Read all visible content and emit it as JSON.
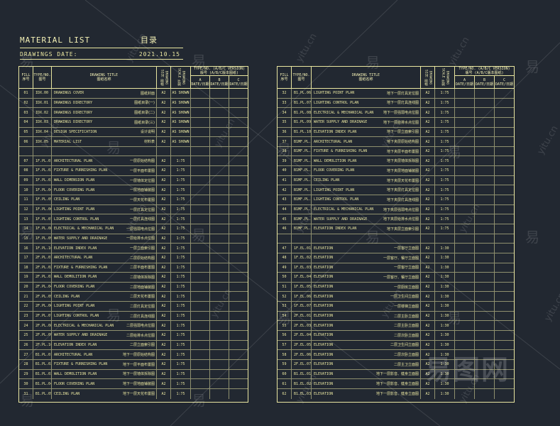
{
  "header": {
    "title": "MATERIAL  LIST",
    "title_cn": "目录",
    "date_label": "DRAWINGS  DATE:",
    "date_value": "2021.10.15"
  },
  "columns": {
    "no": "FILL",
    "no_cn": "序号",
    "code": "TYPE/NO.",
    "code_cn": "图号",
    "title": "DRAWING TITLE",
    "title_cn": "图纸名称",
    "size": "DRAWING SIZE 图幅",
    "scale": "DRAWING SCALE 比例",
    "rev_title": "TYPE/NO. (A/B/C VERSION)",
    "rev_title_cn": "版号 (A/B/C版本图纸)",
    "rev_a": "A",
    "rev_b": "B",
    "rev_c": "C",
    "rev_sub": "DATE/日期"
  },
  "left_rows": [
    {
      "no": "01",
      "code": "IDX.00",
      "title": "DRAWINGS  COVER",
      "cn": "图纸封面",
      "size": "A2",
      "scale": "AS SHOWN"
    },
    {
      "no": "02",
      "code": "IDX.01",
      "title": "DRAWINGS  DIRECTORY",
      "cn": "图纸目录(一)",
      "size": "A2",
      "scale": "AS SHOWN"
    },
    {
      "no": "03",
      "code": "IDX.02",
      "title": "DRAWINGS  DIRECTORY",
      "cn": "图纸目录(二)",
      "size": "A2",
      "scale": "AS SHOWN"
    },
    {
      "no": "04",
      "code": "IDX.03",
      "title": "DRAWINGS  DIRECTORY",
      "cn": "图纸目录(三)",
      "size": "A2",
      "scale": "AS SHOWN"
    },
    {
      "no": "05",
      "code": "IDX.04",
      "title": "DESIGN SPECIFICATION",
      "cn": "设计说明",
      "size": "A2",
      "scale": "AS SHOWN"
    },
    {
      "no": "06",
      "code": "IDX.05",
      "title": "MATERIAL LIST",
      "cn": "材料表",
      "size": "A2",
      "scale": "AS SHOWN"
    },
    {
      "blank": true
    },
    {
      "no": "07",
      "code": "1F.PL.01",
      "title": "ARCHITECTURAL PLAN",
      "cn": "一层原始结构图",
      "size": "A2",
      "scale": "1:75"
    },
    {
      "no": "08",
      "code": "1F.PL.02",
      "title": "FIXTURE & FURNISHING PLAN",
      "cn": "一层平面布置图",
      "size": "A2",
      "scale": "1:75"
    },
    {
      "no": "09",
      "code": "1F.PL.03",
      "title": "WALL DIMENSION PLAN",
      "cn": "一层墙体定位图",
      "size": "A2",
      "scale": "1:75"
    },
    {
      "no": "10",
      "code": "1F.PL.04",
      "title": "FLOOR  COVERING  PLAN",
      "cn": "一层地面铺装图",
      "size": "A2",
      "scale": "1:75"
    },
    {
      "no": "11",
      "code": "1F.PL.05",
      "title": "CEILING  PLAN",
      "cn": "一层天花布置图",
      "size": "A2",
      "scale": "1:75"
    },
    {
      "no": "12",
      "code": "1F.PL.06",
      "title": "LIGHTING  POINT  PLAN",
      "cn": "一层灯具定位图",
      "size": "A2",
      "scale": "1:75"
    },
    {
      "no": "13",
      "code": "1F.PL.07",
      "title": "LIGHTING  CONTROL  PLAN",
      "cn": "一层灯具连线图",
      "size": "A2",
      "scale": "1:75"
    },
    {
      "no": "14",
      "code": "1F.PL.08",
      "title": "ELECTRICAL & MECHANICAL PLAN",
      "cn": "一层强弱电点位图",
      "size": "A2",
      "scale": "1:75"
    },
    {
      "no": "15",
      "code": "1F.PL.09",
      "title": "WATER SUPPLY AND DRAINAGE",
      "cn": "一层给排水点位图",
      "size": "A2",
      "scale": "1:75"
    },
    {
      "no": "16",
      "code": "1F.PL.10",
      "title": "ELEVATION INDEX PLAN",
      "cn": "一层立面索引图",
      "size": "A2",
      "scale": "1:75"
    },
    {
      "no": "17",
      "code": "2F.PL.01",
      "title": "ARCHITECTURAL PLAN",
      "cn": "二层原始结构图",
      "size": "A2",
      "scale": "1:75"
    },
    {
      "no": "18",
      "code": "2F.PL.02",
      "title": "FIXTURE & FURNISHING PLAN",
      "cn": "二层平面布置图",
      "size": "A2",
      "scale": "1:75"
    },
    {
      "no": "19",
      "code": "2F.PL.03",
      "title": "WALL DEMOLITION PLAN",
      "cn": "二层墙体拆除图",
      "size": "A2",
      "scale": "1:75"
    },
    {
      "no": "20",
      "code": "2F.PL.04",
      "title": "FLOOR  COVERING  PLAN",
      "cn": "二层地面铺装图",
      "size": "A2",
      "scale": "1:75"
    },
    {
      "no": "21",
      "code": "2F.PL.05",
      "title": "CEILING  PLAN",
      "cn": "二层天花布置图",
      "size": "A2",
      "scale": "1:75"
    },
    {
      "no": "22",
      "code": "2F.PL.06",
      "title": "LIGHTING  POINT  PLAN",
      "cn": "二层灯具定位图",
      "size": "A2",
      "scale": "1:75"
    },
    {
      "no": "23",
      "code": "2F.PL.07",
      "title": "LIGHTING  CONTROL  PLAN",
      "cn": "二层灯具连线图",
      "size": "A2",
      "scale": "1:75"
    },
    {
      "no": "24",
      "code": "2F.PL.08",
      "title": "ELECTRICAL & MECHANICAL PLAN",
      "cn": "二层强弱电点位图",
      "size": "A2",
      "scale": "1:75"
    },
    {
      "no": "25",
      "code": "2F.PL.09",
      "title": "WATER SUPPLY AND DRAINAGE",
      "cn": "二层给排水点位图",
      "size": "A2",
      "scale": "1:75"
    },
    {
      "no": "26",
      "code": "2F.PL.10",
      "title": "ELEVATION INDEX PLAN",
      "cn": "二层立面索引图",
      "size": "A2",
      "scale": "1:75"
    },
    {
      "no": "27",
      "code": "B1.PL.01",
      "title": "ARCHITECTURAL PLAN",
      "cn": "地下一层原始结构图",
      "size": "A2",
      "scale": "1:75"
    },
    {
      "no": "28",
      "code": "B1.PL.02",
      "title": "FIXTURE & FURNISHING PLAN",
      "cn": "地下一层平面布置图",
      "size": "A2",
      "scale": "1:75"
    },
    {
      "no": "29",
      "code": "B1.PL.03",
      "title": "WALL DEMOLITION PLAN",
      "cn": "地下一层墙体拆除图",
      "size": "A2",
      "scale": "1:75"
    },
    {
      "no": "30",
      "code": "B1.PL.04",
      "title": "FLOOR COVERING PLAN",
      "cn": "地下一层地面铺装图",
      "size": "A2",
      "scale": "1:75"
    },
    {
      "no": "31",
      "code": "B1.PL.05",
      "title": "CEILING PLAN",
      "cn": "地下一层天花布置图",
      "size": "A2",
      "scale": "1:75"
    }
  ],
  "right_rows": [
    {
      "no": "32",
      "code": "B1.PL.06",
      "title": "LIGHTING  POINT  PLAN",
      "cn": "地下一层灯具定位图",
      "size": "A2",
      "scale": "1:75"
    },
    {
      "no": "33",
      "code": "B1.PL.07",
      "title": "LIGHTING  CONTROL  PLAN",
      "cn": "地下一层灯具连线图",
      "size": "A2",
      "scale": "1:75"
    },
    {
      "no": "34",
      "code": "B1.PL.08",
      "title": "ELECTRICAL & MECHANICAL PLAN",
      "cn": "地下一层强弱电点位图",
      "size": "A2",
      "scale": "1:75"
    },
    {
      "no": "35",
      "code": "B1.PL.09",
      "title": "WATER SUPPLY AND DRAINAGE",
      "cn": "地下一层给排水点位图",
      "size": "A2",
      "scale": "1:75"
    },
    {
      "no": "36",
      "code": "B1.PL.10",
      "title": "ELEVATION INDEX PLAN",
      "cn": "地下一层立面索引图",
      "size": "A2",
      "scale": "1:75"
    },
    {
      "no": "37",
      "code": "B1MF.PL.01",
      "title": "ARCHITECTURAL PLAN",
      "cn": "地下夹层原始结构图",
      "size": "A2",
      "scale": "1:75"
    },
    {
      "no": "38",
      "code": "B1MF.PL.02",
      "title": "FIXTURE & FURNISHING  PLAN",
      "cn": "地下夹层平面布置图",
      "size": "A2",
      "scale": "1:75"
    },
    {
      "no": "39",
      "code": "B1MF.PL.03",
      "title": "WALL DEMOLITION PLAN",
      "cn": "地下夹层墙体拆除图",
      "size": "A2",
      "scale": "1:75"
    },
    {
      "no": "40",
      "code": "B1MF.PL.04",
      "title": "FLOOR  COVERING  PLAN",
      "cn": "地下夹层地面铺装图",
      "size": "A2",
      "scale": "1:75"
    },
    {
      "no": "41",
      "code": "B1MF.PL.05",
      "title": "CEILING  PLAN",
      "cn": "地下夹层天花布置图",
      "size": "A2",
      "scale": "1:75"
    },
    {
      "no": "42",
      "code": "B1MF.PL.06",
      "title": "LIGHTING  POINT  PLAN",
      "cn": "地下夹层灯具定位图",
      "size": "A2",
      "scale": "1:75"
    },
    {
      "no": "43",
      "code": "B1MF.PL.07",
      "title": "LIGHTING  CONTROL  PLAN",
      "cn": "地下夹层灯具连线图",
      "size": "A2",
      "scale": "1:75"
    },
    {
      "no": "44",
      "code": "B1MF.PL.08",
      "title": "ELECTRICAL & MECHANICAL PLAN",
      "cn": "地下夹层强弱电点位图",
      "size": "A2",
      "scale": "1:75"
    },
    {
      "no": "45",
      "code": "B1MF.PL.09",
      "title": "WATER SUPPLY AND DRAINAGE",
      "cn": "地下夹层给排水点位图",
      "size": "A2",
      "scale": "1:75"
    },
    {
      "no": "46",
      "code": "B1MF.PL.10",
      "title": "ELEVATION INDEX PLAN",
      "cn": "地下夹层立面索引图",
      "size": "A2",
      "scale": "1:75"
    },
    {
      "blank": true
    },
    {
      "no": "47",
      "code": "1F.EL.01",
      "title": "ELEVATION",
      "cn": "一层客厅立面图",
      "size": "A2",
      "scale": "1:30"
    },
    {
      "no": "48",
      "code": "1F.EL.02",
      "title": "ELEVATION",
      "cn": "一层客厅、餐厅立面图",
      "size": "A2",
      "scale": "1:30"
    },
    {
      "no": "49",
      "code": "1F.EL.03",
      "title": "ELEVATION",
      "cn": "一层客厅立面图",
      "size": "A2",
      "scale": "1:30"
    },
    {
      "no": "50",
      "code": "1F.EL.04",
      "title": "ELEVATION",
      "cn": "一层客厅、餐厅立面图",
      "size": "A2",
      "scale": "1:30"
    },
    {
      "no": "51",
      "code": "1F.EL.05",
      "title": "ELEVATION",
      "cn": "一层厨房立面图",
      "size": "A2",
      "scale": "1:30"
    },
    {
      "no": "52",
      "code": "1F.EL.06",
      "title": "ELEVATION",
      "cn": "一层卫生间立面图",
      "size": "A2",
      "scale": "1:30"
    },
    {
      "no": "53",
      "code": "1F.EL.07",
      "title": "ELEVATION",
      "cn": "一层楼梯立面图",
      "size": "A2",
      "scale": "1:30"
    },
    {
      "no": "54",
      "code": "2F.EL.01",
      "title": "ELEVATION",
      "cn": "二层主卧立面图",
      "size": "A2",
      "scale": "1:30"
    },
    {
      "no": "55",
      "code": "2F.EL.03",
      "title": "ELEVATION",
      "cn": "二层主卧立面图",
      "size": "A2",
      "scale": "1:30"
    },
    {
      "no": "56",
      "code": "2F.EL.04",
      "title": "ELEVATION",
      "cn": "二层次卧立面图",
      "size": "A2",
      "scale": "1:30"
    },
    {
      "no": "57",
      "code": "2F.EL.05",
      "title": "ELEVATION",
      "cn": "二层卫生间立面图",
      "size": "A2",
      "scale": "1:30"
    },
    {
      "no": "58",
      "code": "2F.EL.06",
      "title": "ELEVATION",
      "cn": "二层次卧立面图",
      "size": "A2",
      "scale": "1:30"
    },
    {
      "no": "59",
      "code": "2F.EL.07",
      "title": "ELEVATION",
      "cn": "二层主卫立面图",
      "size": "A2",
      "scale": "1:30"
    },
    {
      "no": "60",
      "code": "B1.EL.01",
      "title": "ELEVATION",
      "cn": "地下一层影音、健身立面图",
      "size": "A2",
      "scale": "1:30"
    },
    {
      "no": "61",
      "code": "B1.EL.02",
      "title": "ELEVATION",
      "cn": "地下一层影音、健身立面图",
      "size": "A2",
      "scale": "1:30"
    },
    {
      "no": "62",
      "code": "B1.EL.03",
      "title": "ELEVATION",
      "cn": "地下一层影音、健身立面图",
      "size": "A2",
      "scale": "1:30"
    }
  ],
  "watermarks": {
    "cn": "易",
    "en": "yitu.cn",
    "logo": "易图网"
  },
  "colors": {
    "background": "#222831",
    "line": "#e9e6a0"
  }
}
